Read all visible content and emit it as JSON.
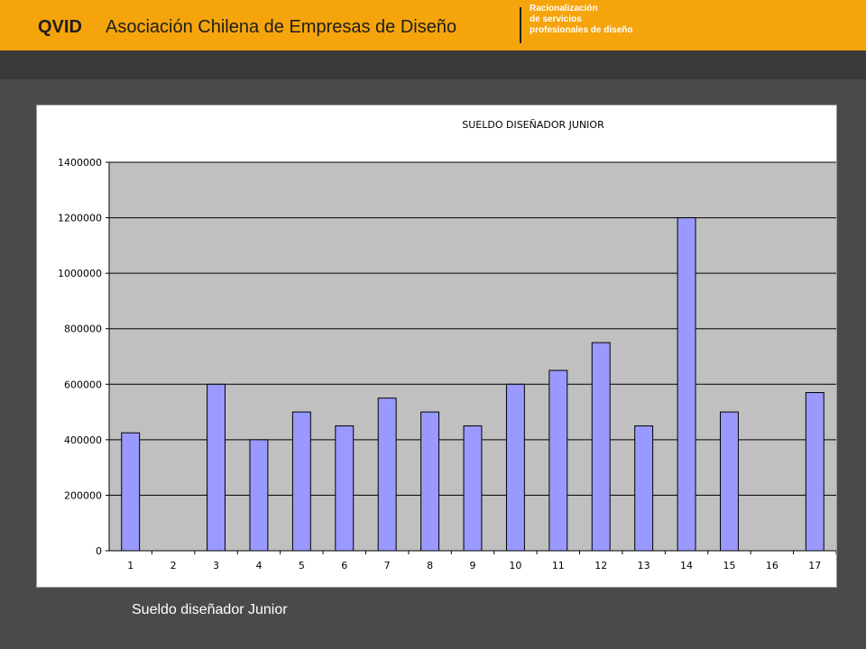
{
  "header": {
    "brand": "QVID",
    "organization": "Asociación Chilena de Empresas de Diseño",
    "tagline": [
      "Racionalización",
      "de servicios",
      "profesionales  de diseño"
    ],
    "background_color": "#f5a40c"
  },
  "caption": "Sueldo diseñador Junior",
  "chart_data": {
    "type": "bar",
    "title": "SUELDO DISEÑADOR JUNIOR",
    "xlabel": "",
    "ylabel": "",
    "categories": [
      "1",
      "2",
      "3",
      "4",
      "5",
      "6",
      "7",
      "8",
      "9",
      "10",
      "11",
      "12",
      "13",
      "14",
      "15",
      "16",
      "17"
    ],
    "values": [
      425000,
      0,
      600000,
      400000,
      500000,
      450000,
      550000,
      500000,
      450000,
      600000,
      650000,
      750000,
      450000,
      1200000,
      500000,
      0,
      570000
    ],
    "ylim": [
      0,
      1400000
    ],
    "yticks": [
      "0",
      "200000",
      "400000",
      "600000",
      "800000",
      "1000000",
      "1200000",
      "1400000"
    ],
    "grid": true,
    "legend": "none",
    "bar_color": "#9999ff",
    "plot_background": "#c0c0c0"
  }
}
